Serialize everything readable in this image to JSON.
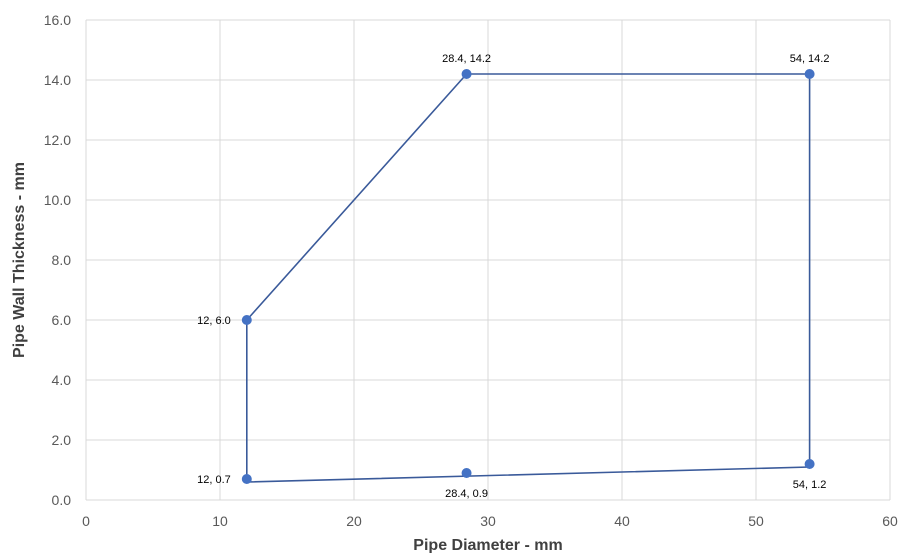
{
  "chart_data": {
    "type": "scatter",
    "title": "",
    "xlabel": "Pipe Diameter - mm",
    "ylabel": "Pipe Wall Thickness - mm",
    "xlim": [
      0,
      60
    ],
    "ylim": [
      0,
      16
    ],
    "x_ticks": [
      0,
      10,
      20,
      30,
      40,
      50,
      60
    ],
    "x_tick_labels": [
      "0",
      "10",
      "20",
      "30",
      "40",
      "50",
      "60"
    ],
    "y_ticks": [
      0,
      2,
      4,
      6,
      8,
      10,
      12,
      14,
      16
    ],
    "y_tick_labels": [
      "0.0",
      "2.0",
      "4.0",
      "6.0",
      "8.0",
      "10.0",
      "12.0",
      "14.0",
      "16.0"
    ],
    "grid": true,
    "legend": "none",
    "series": [
      {
        "color": "#4472c4",
        "line_color": "#3a5a9a",
        "points": [
          {
            "x": 12,
            "y": 0.7,
            "label": "12, 0.7",
            "label_pos": "left"
          },
          {
            "x": 28.4,
            "y": 0.9,
            "label": "28.4, 0.9",
            "label_pos": "below"
          },
          {
            "x": 54,
            "y": 1.2,
            "label": "54, 1.2",
            "label_pos": "below"
          },
          {
            "x": 54,
            "y": 14.2,
            "label": "54, 14.2",
            "label_pos": "above"
          },
          {
            "x": 28.4,
            "y": 14.2,
            "label": "28.4, 14.2",
            "label_pos": "above"
          },
          {
            "x": 12,
            "y": 6.0,
            "label": "12, 6.0",
            "label_pos": "left"
          }
        ],
        "outline": [
          [
            12,
            0.6
          ],
          [
            54,
            1.1
          ],
          [
            54,
            14.2
          ],
          [
            28.4,
            14.2
          ],
          [
            12,
            6.0
          ],
          [
            12,
            0.6
          ]
        ]
      }
    ]
  }
}
